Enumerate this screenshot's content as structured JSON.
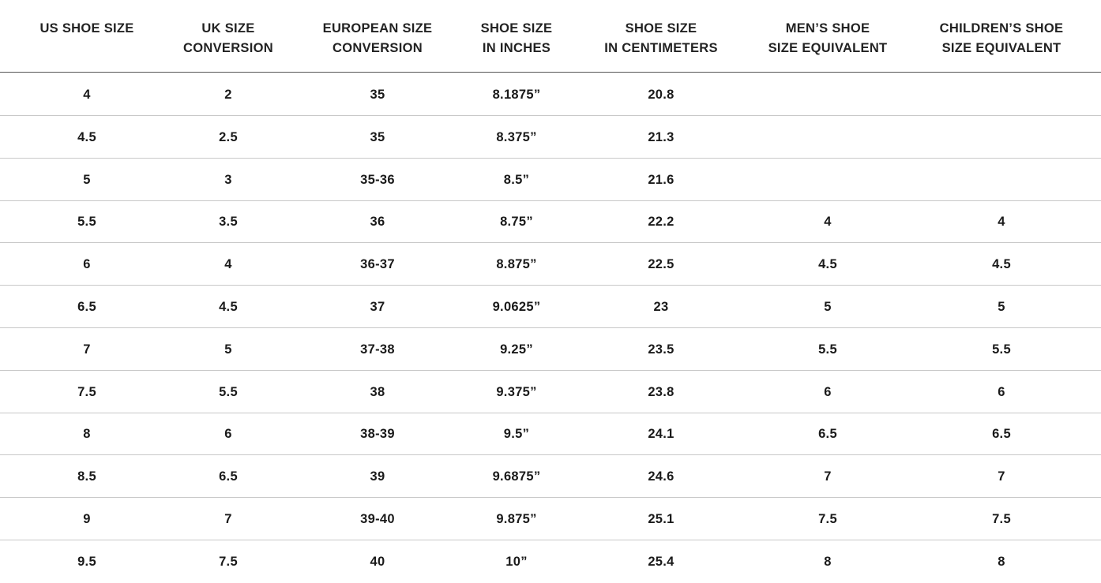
{
  "headers": [
    [
      "US SHOE SIZE"
    ],
    [
      "UK SIZE",
      "CONVERSION"
    ],
    [
      "EUROPEAN SIZE",
      "CONVERSION"
    ],
    [
      "SHOE SIZE",
      "IN INCHES"
    ],
    [
      "SHOE SIZE",
      "IN CENTIMETERS"
    ],
    [
      "MEN’S SHOE",
      "SIZE EQUIVALENT"
    ],
    [
      "CHILDREN’S SHOE",
      "SIZE EQUIVALENT"
    ]
  ],
  "rows": [
    [
      "4",
      "2",
      "35",
      "8.1875”",
      "20.8",
      "",
      ""
    ],
    [
      "4.5",
      "2.5",
      "35",
      "8.375”",
      "21.3",
      "",
      ""
    ],
    [
      "5",
      "3",
      "35-36",
      "8.5”",
      "21.6",
      "",
      ""
    ],
    [
      "5.5",
      "3.5",
      "36",
      "8.75”",
      "22.2",
      "4",
      "4"
    ],
    [
      "6",
      "4",
      "36-37",
      "8.875”",
      "22.5",
      "4.5",
      "4.5"
    ],
    [
      "6.5",
      "4.5",
      "37",
      "9.0625”",
      "23",
      "5",
      "5"
    ],
    [
      "7",
      "5",
      "37-38",
      "9.25”",
      "23.5",
      "5.5",
      "5.5"
    ],
    [
      "7.5",
      "5.5",
      "38",
      "9.375”",
      "23.8",
      "6",
      "6"
    ],
    [
      "8",
      "6",
      "38-39",
      "9.5”",
      "24.1",
      "6.5",
      "6.5"
    ],
    [
      "8.5",
      "6.5",
      "39",
      "9.6875”",
      "24.6",
      "7",
      "7"
    ],
    [
      "9",
      "7",
      "39-40",
      "9.875”",
      "25.1",
      "7.5",
      "7.5"
    ],
    [
      "9.5",
      "7.5",
      "40",
      "10”",
      "25.4",
      "8",
      "8"
    ]
  ]
}
